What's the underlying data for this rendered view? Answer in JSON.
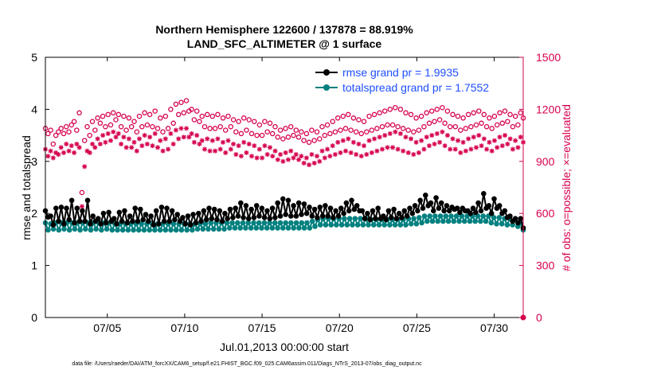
{
  "title_line1": "Northern Hemisphere 122600 / 137878 = 88.919%",
  "title_line2": "LAND_SFC_ALTIMETER @ 1 surface",
  "footer": "data file: /Users/raeder/DAI/ATM_forcXX/CAM6_setup/f.e21.FHIST_BGC.f09_025.CAM6assim.011/Diags_NTrS_2013-07/obs_diag_output.nc",
  "colors": {
    "rmse": "#000000",
    "spread": "#00807f",
    "obs": "#d6004f",
    "legend_text": "#1f4fff"
  },
  "chart_data": {
    "type": "line",
    "xlabel": "Jul.01,2013 00:00:00 start",
    "ylabel_left": "rmse and totalspread",
    "ylabel_right": "# of obs: o=possible; ×=evaluated",
    "x_range_days": [
      1,
      31.875
    ],
    "xticks": [
      {
        "day": 5,
        "label": "07/05"
      },
      {
        "day": 10,
        "label": "07/10"
      },
      {
        "day": 15,
        "label": "07/15"
      },
      {
        "day": 20,
        "label": "07/20"
      },
      {
        "day": 25,
        "label": "07/25"
      },
      {
        "day": 30,
        "label": "07/30"
      }
    ],
    "ylim_left": [
      0,
      5
    ],
    "yticks_left": [
      "0",
      "1",
      "2",
      "3",
      "4",
      "5"
    ],
    "ylim_right": [
      0,
      1500
    ],
    "yticks_right": [
      "0",
      "300",
      "600",
      "900",
      "1200",
      "1500"
    ],
    "grid": false,
    "legend_position": "top-right",
    "series": [
      {
        "name": "rmse grand pr = 1.9935",
        "axis": "left",
        "marker": "filled-circle",
        "color": "#000000",
        "values": [
          2.05,
          1.93,
          1.95,
          1.78,
          2.1,
          1.85,
          2.12,
          1.8,
          2.1,
          1.88,
          2.25,
          1.82,
          2.1,
          1.85,
          2.05,
          1.85,
          2.25,
          1.8,
          1.95,
          1.85,
          1.9,
          1.8,
          2,
          1.82,
          2.02,
          1.85,
          1.9,
          1.8,
          2.02,
          1.85,
          2.05,
          1.82,
          1.95,
          1.85,
          2.1,
          1.85,
          2.08,
          1.88,
          1.98,
          1.85,
          1.95,
          1.78,
          2.05,
          1.8,
          2.12,
          1.85,
          2.1,
          1.85,
          2.05,
          1.88,
          1.98,
          1.85,
          1.92,
          1.8,
          1.95,
          1.78,
          1.98,
          1.82,
          2,
          1.85,
          2.05,
          1.88,
          2.1,
          1.9,
          2.08,
          1.88,
          2.05,
          1.85,
          2,
          1.9,
          2.08,
          1.92,
          2.1,
          1.95,
          2.2,
          1.92,
          2.15,
          1.9,
          2.08,
          1.92,
          2.15,
          1.95,
          2.1,
          1.92,
          2.05,
          1.9,
          2.1,
          1.92,
          2.2,
          1.95,
          2.28,
          1.98,
          2.25,
          1.95,
          2.15,
          1.95,
          2.2,
          1.98,
          2.18,
          2,
          2.12,
          1.95,
          2.08,
          1.92,
          2.12,
          1.95,
          2.15,
          1.95,
          2.1,
          1.92,
          2.05,
          1.95,
          2.1,
          2,
          2.2,
          2.05,
          2.25,
          2.08,
          2.15,
          2.05,
          2.05,
          1.9,
          2,
          1.88,
          2.05,
          1.9,
          2.1,
          1.9,
          1.95,
          1.88,
          2.05,
          1.92,
          2.08,
          1.9,
          2,
          1.92,
          2.05,
          1.95,
          2.1,
          2,
          2.15,
          2.05,
          2.25,
          2.1,
          2.35,
          2.15,
          2.2,
          2.05,
          2.3,
          2.1,
          2.2,
          2.05,
          2.15,
          2.05,
          2.12,
          2.08,
          2.1,
          2.02,
          2.1,
          2.05,
          2.05,
          2,
          2.1,
          2.02,
          2.2,
          2.05,
          2.38,
          2.1,
          2.15,
          2,
          2.28,
          2.1,
          2.15,
          2,
          2.05,
          1.92,
          1.95,
          1.85,
          1.9,
          1.82,
          1.9,
          1.72
        ]
      },
      {
        "name": "totalspread grand pr = 1.7552",
        "axis": "left",
        "marker": "filled-circle",
        "color": "#00807f",
        "values": [
          1.82,
          1.68,
          1.8,
          1.7,
          1.82,
          1.68,
          1.82,
          1.7,
          1.82,
          1.68,
          1.82,
          1.7,
          1.82,
          1.68,
          1.82,
          1.7,
          1.82,
          1.68,
          1.82,
          1.7,
          1.82,
          1.68,
          1.82,
          1.7,
          1.82,
          1.68,
          1.8,
          1.68,
          1.8,
          1.68,
          1.8,
          1.68,
          1.8,
          1.68,
          1.8,
          1.68,
          1.8,
          1.68,
          1.8,
          1.68,
          1.8,
          1.68,
          1.8,
          1.68,
          1.8,
          1.68,
          1.8,
          1.68,
          1.8,
          1.68,
          1.8,
          1.68,
          1.8,
          1.68,
          1.8,
          1.68,
          1.8,
          1.7,
          1.8,
          1.7,
          1.8,
          1.7,
          1.82,
          1.7,
          1.82,
          1.7,
          1.82,
          1.7,
          1.82,
          1.72,
          1.82,
          1.72,
          1.82,
          1.72,
          1.82,
          1.72,
          1.82,
          1.72,
          1.82,
          1.72,
          1.82,
          1.72,
          1.82,
          1.72,
          1.82,
          1.72,
          1.82,
          1.72,
          1.82,
          1.72,
          1.82,
          1.72,
          1.82,
          1.72,
          1.82,
          1.72,
          1.82,
          1.72,
          1.82,
          1.72,
          1.85,
          1.75,
          1.88,
          1.78,
          1.9,
          1.78,
          1.9,
          1.78,
          1.9,
          1.78,
          1.9,
          1.78,
          1.9,
          1.78,
          1.9,
          1.78,
          1.9,
          1.78,
          1.9,
          1.78,
          1.9,
          1.78,
          1.88,
          1.78,
          1.88,
          1.78,
          1.88,
          1.78,
          1.88,
          1.78,
          1.88,
          1.78,
          1.88,
          1.78,
          1.88,
          1.78,
          1.9,
          1.8,
          1.9,
          1.8,
          1.92,
          1.82,
          1.95,
          1.85,
          1.95,
          1.85,
          1.95,
          1.85,
          1.95,
          1.85,
          1.95,
          1.85,
          1.95,
          1.85,
          1.95,
          1.85,
          1.95,
          1.85,
          1.95,
          1.85,
          1.95,
          1.85,
          1.95,
          1.85,
          1.95,
          1.85,
          1.95,
          1.82,
          1.92,
          1.8,
          1.92,
          1.8,
          1.9,
          1.78,
          1.9,
          1.78,
          1.88,
          1.75,
          1.82,
          1.68
        ]
      },
      {
        "name": "obs possible",
        "axis": "right",
        "marker": "open-circle",
        "color": "#d6004f",
        "values": [
          1090,
          1060,
          1080,
          1000,
          1050,
          1070,
          1090,
          1060,
          1100,
          1070,
          1110,
          1130,
          1080,
          1180,
          720,
          1020,
          1100,
          1050,
          1130,
          1080,
          1150,
          1120,
          1160,
          1100,
          1170,
          1110,
          1180,
          1140,
          1170,
          1100,
          1160,
          1080,
          1150,
          1100,
          1130,
          1070,
          1160,
          1100,
          1180,
          1110,
          1170,
          1100,
          1190,
          1090,
          1150,
          1070,
          1160,
          1090,
          1200,
          1120,
          1230,
          1170,
          1240,
          1180,
          1250,
          1190,
          1200,
          1140,
          1190,
          1130,
          1160,
          1100,
          1170,
          1090,
          1160,
          1090,
          1170,
          1100,
          1150,
          1080,
          1160,
          1100,
          1140,
          1070,
          1130,
          1060,
          1150,
          1080,
          1140,
          1060,
          1130,
          1050,
          1110,
          1050,
          1130,
          1070,
          1120,
          1060,
          1100,
          1040,
          1080,
          1030,
          1090,
          1040,
          1100,
          1050,
          1080,
          1040,
          1070,
          1020,
          1060,
          1010,
          1080,
          1020,
          1070,
          1030,
          1100,
          1050,
          1110,
          1060,
          1130,
          1070,
          1150,
          1080,
          1160,
          1090,
          1170,
          1080,
          1150,
          1070,
          1140,
          1060,
          1130,
          1070,
          1160,
          1080,
          1170,
          1090,
          1180,
          1100,
          1190,
          1110,
          1200,
          1110,
          1210,
          1100,
          1200,
          1090,
          1180,
          1080,
          1170,
          1070,
          1150,
          1080,
          1160,
          1100,
          1180,
          1120,
          1190,
          1130,
          1200,
          1140,
          1210,
          1120,
          1190,
          1100,
          1170,
          1100,
          1160,
          1080,
          1150,
          1090,
          1170,
          1100,
          1180,
          1110,
          1190,
          1120,
          1170,
          1100,
          1150,
          1090,
          1160,
          1110,
          1180,
          1120,
          1190,
          1130,
          1170,
          1100,
          1160,
          1110,
          1180,
          1150
        ]
      },
      {
        "name": "obs evaluated",
        "axis": "right",
        "marker": "asterisk",
        "color": "#d6004f",
        "values": [
          970,
          930,
          960,
          920,
          950,
          940,
          980,
          950,
          1000,
          960,
          990,
          950,
          1000,
          980,
          640,
          870,
          960,
          950,
          1000,
          980,
          1030,
          1000,
          1050,
          1010,
          1060,
          1020,
          1070,
          1040,
          1060,
          1000,
          1040,
          980,
          1030,
          980,
          1010,
          960,
          1030,
          990,
          1050,
          1000,
          1040,
          990,
          1060,
          980,
          1020,
          960,
          1030,
          970,
          1060,
          1000,
          1080,
          1030,
          1090,
          1040,
          1090,
          1040,
          1060,
          1010,
          1050,
          1000,
          1020,
          970,
          1030,
          960,
          1020,
          960,
          1030,
          970,
          1010,
          950,
          1020,
          970,
          1000,
          940,
          990,
          930,
          1010,
          950,
          1000,
          930,
          990,
          920,
          970,
          920,
          990,
          940,
          980,
          930,
          960,
          910,
          940,
          900,
          950,
          910,
          960,
          920,
          940,
          910,
          930,
          890,
          920,
          880,
          940,
          890,
          930,
          900,
          960,
          920,
          970,
          930,
          990,
          940,
          1010,
          950,
          1020,
          960,
          1030,
          950,
          1010,
          940,
          1000,
          930,
          990,
          940,
          1020,
          950,
          1030,
          960,
          1040,
          970,
          1050,
          980,
          1060,
          980,
          1070,
          970,
          1060,
          960,
          1040,
          950,
          1030,
          940,
          1010,
          950,
          1020,
          970,
          1040,
          990,
          1050,
          1000,
          1060,
          1010,
          1070,
          990,
          1050,
          970,
          1030,
          970,
          1020,
          950,
          1010,
          960,
          1030,
          970,
          1040,
          980,
          1050,
          990,
          1030,
          970,
          1010,
          960,
          1020,
          980,
          1040,
          990,
          1050,
          1000,
          1030,
          970,
          1020,
          980,
          1040,
          1010
        ]
      }
    ]
  }
}
